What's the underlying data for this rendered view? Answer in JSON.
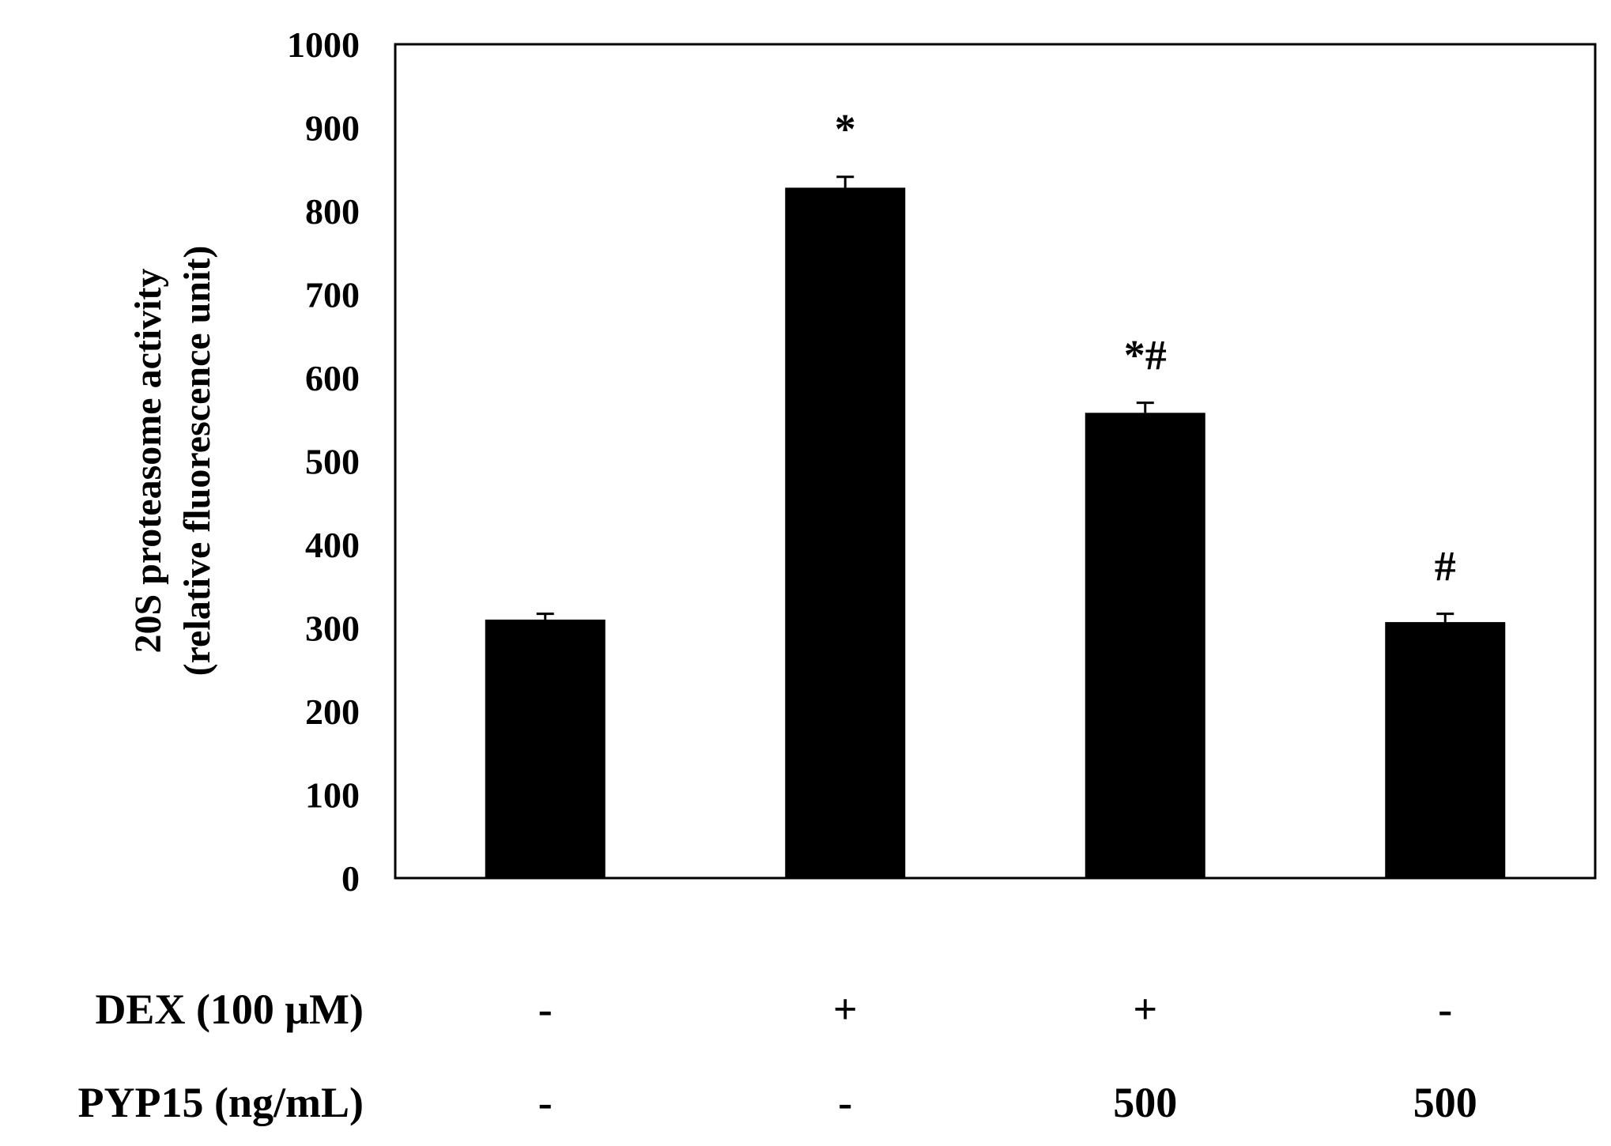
{
  "chart_data": {
    "type": "bar",
    "title": "",
    "xlabel": "",
    "ylabel_line1": "20S proteasome activity",
    "ylabel_line2": "(relative fluorescence unit)",
    "ylim": [
      0,
      1000
    ],
    "yticks": [
      0,
      100,
      200,
      300,
      400,
      500,
      600,
      700,
      800,
      900,
      1000
    ],
    "grid": false,
    "legend": "none",
    "bar_color": "#000000",
    "values": [
      310,
      828,
      558,
      307
    ],
    "errors": [
      7,
      13,
      12,
      10
    ],
    "annotations": [
      "",
      "*",
      "*#",
      "#"
    ],
    "treatment_rows": [
      {
        "label": "DEX (100 μM)",
        "values": [
          "-",
          "+",
          "+",
          "-"
        ]
      },
      {
        "label": "PYP15 (ng/mL)",
        "values": [
          "-",
          "-",
          "500",
          "500"
        ]
      }
    ]
  }
}
